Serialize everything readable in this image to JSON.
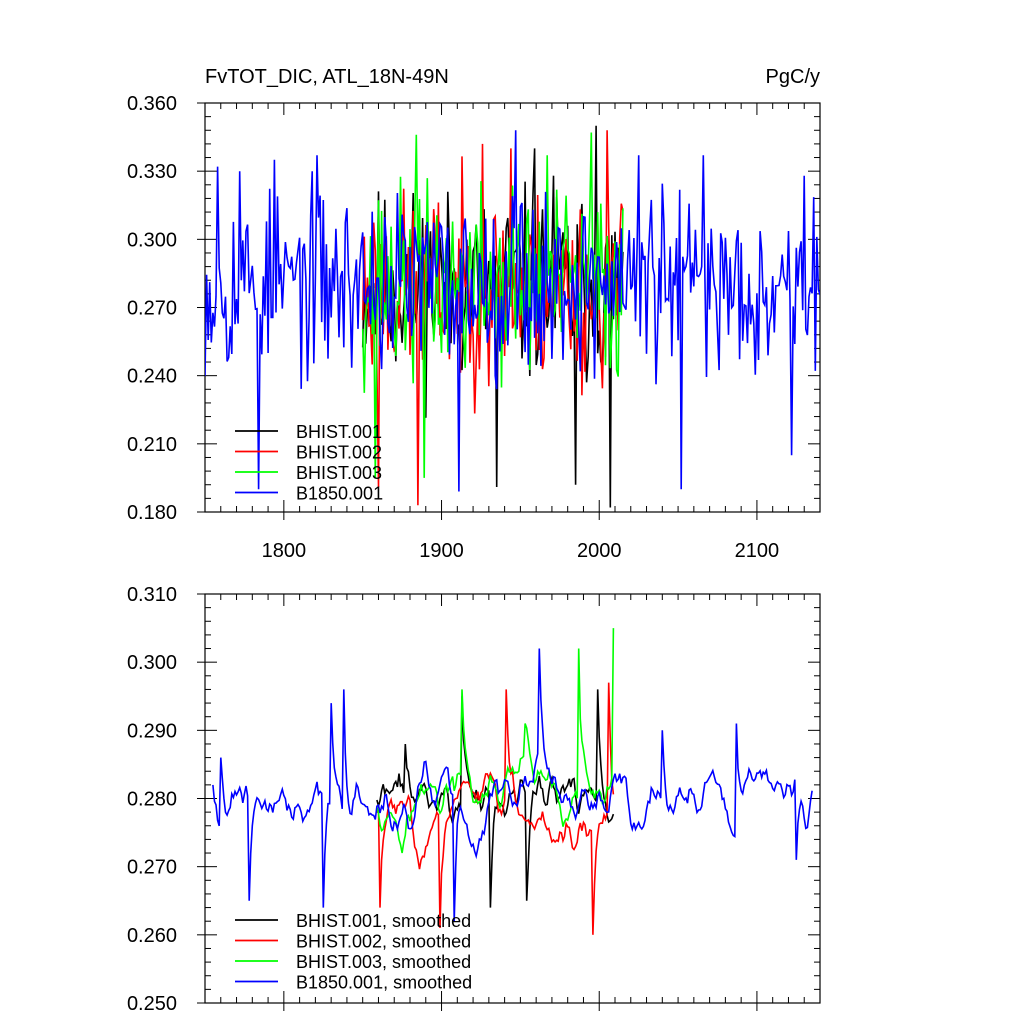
{
  "chart_data": [
    {
      "type": "line",
      "title": "FvTOT_DIC, ATL_18N-49N",
      "units": "PgC/y",
      "xlim": [
        1750,
        2140
      ],
      "ylim": [
        0.18,
        0.36
      ],
      "xticks": [
        1800,
        1900,
        2000,
        2100
      ],
      "yticks": [
        0.18,
        0.21,
        0.24,
        0.27,
        0.3,
        0.33,
        0.36
      ],
      "ytick_labels": [
        "0.180",
        "0.210",
        "0.240",
        "0.270",
        "0.300",
        "0.330",
        "0.360"
      ],
      "xtick_labels": [
        "1800",
        "1900",
        "2000",
        "2100"
      ],
      "legend_position": "bottom-left",
      "series": [
        {
          "name": "BHIST.001",
          "color": "#000000",
          "start": 1850,
          "end": 2015,
          "mean": 0.279,
          "amp": 0.03,
          "seed": 11,
          "peaks": [
            [
              1998,
              0.35
            ],
            [
              2007,
              0.182
            ],
            [
              1935,
              0.191
            ],
            [
              1985,
              0.192
            ],
            [
              1959,
              0.34
            ],
            [
              1971,
              0.328
            ]
          ]
        },
        {
          "name": "BHIST.002",
          "color": "#ff0000",
          "start": 1850,
          "end": 2015,
          "mean": 0.278,
          "amp": 0.03,
          "seed": 23,
          "peaks": [
            [
              2005,
              0.348
            ],
            [
              1885,
              0.183
            ],
            [
              1926,
              0.342
            ],
            [
              1944,
              0.34
            ],
            [
              1860,
              0.191
            ]
          ]
        },
        {
          "name": "BHIST.003",
          "color": "#00ff00",
          "start": 1850,
          "end": 2015,
          "mean": 0.28,
          "amp": 0.03,
          "seed": 37,
          "peaks": [
            [
              1884,
              0.346
            ],
            [
              1995,
              0.347
            ],
            [
              1889,
              0.195
            ],
            [
              1858,
              0.195
            ],
            [
              1967,
              0.337
            ]
          ]
        },
        {
          "name": "B1850.001",
          "color": "#0000ff",
          "start": 1750,
          "end": 2140,
          "mean": 0.281,
          "amp": 0.028,
          "seed": 53,
          "peaks": [
            [
              1758,
              0.332
            ],
            [
              1772,
              0.33
            ],
            [
              1794,
              0.335
            ],
            [
              1821,
              0.337
            ],
            [
              1911,
              0.189
            ],
            [
              1947,
              0.348
            ],
            [
              1951,
              0.316
            ],
            [
              2025,
              0.337
            ],
            [
              2052,
              0.19
            ],
            [
              2066,
              0.337
            ],
            [
              2122,
              0.205
            ],
            [
              2130,
              0.328
            ],
            [
              1784,
              0.19
            ]
          ]
        }
      ]
    },
    {
      "type": "line",
      "xlim": [
        1750,
        2140
      ],
      "ylim": [
        0.25,
        0.31
      ],
      "xticks": [
        1800,
        1900,
        2000,
        2100
      ],
      "yticks": [
        0.25,
        0.26,
        0.27,
        0.28,
        0.29,
        0.3,
        0.31
      ],
      "ytick_labels": [
        "0.250",
        "0.260",
        "0.270",
        "0.280",
        "0.290",
        "0.300",
        "0.310"
      ],
      "legend_position": "bottom-left",
      "series": [
        {
          "name": "BHIST.001, smoothed",
          "color": "#000000",
          "start": 1859,
          "end": 2009,
          "mean": 0.28,
          "amp": 0.006,
          "seed": 71,
          "peaks": [
            [
              1913,
              0.295
            ],
            [
              1931,
              0.264
            ],
            [
              1999,
              0.296
            ],
            [
              1877,
              0.288
            ],
            [
              1954,
              0.265
            ]
          ]
        },
        {
          "name": "BHIST.002, smoothed",
          "color": "#ff0000",
          "start": 1859,
          "end": 2009,
          "mean": 0.278,
          "amp": 0.006,
          "seed": 83,
          "peaks": [
            [
              1996,
              0.26
            ],
            [
              2006,
              0.297
            ],
            [
              1941,
              0.296
            ],
            [
              1899,
              0.261
            ],
            [
              1861,
              0.264
            ]
          ]
        },
        {
          "name": "BHIST.003, smoothed",
          "color": "#00ff00",
          "start": 1859,
          "end": 2009,
          "mean": 0.28,
          "amp": 0.006,
          "seed": 97,
          "peaks": [
            [
              2009,
              0.305
            ],
            [
              1987,
              0.302
            ],
            [
              1913,
              0.296
            ],
            [
              1953,
              0.291
            ],
            [
              1875,
              0.272
            ]
          ]
        },
        {
          "name": "B1850.001, smoothed",
          "color": "#0000ff",
          "start": 1755,
          "end": 2135,
          "mean": 0.279,
          "amp": 0.006,
          "seed": 109,
          "peaks": [
            [
              1962,
              0.302
            ],
            [
              1838,
              0.296
            ],
            [
              1830,
              0.294
            ],
            [
              1908,
              0.262
            ],
            [
              1825,
              0.264
            ],
            [
              2040,
              0.29
            ],
            [
              2087,
              0.291
            ],
            [
              2125,
              0.271
            ],
            [
              1778,
              0.265
            ],
            [
              1755,
              0.282
            ],
            [
              1760,
              0.286
            ]
          ]
        }
      ]
    }
  ]
}
